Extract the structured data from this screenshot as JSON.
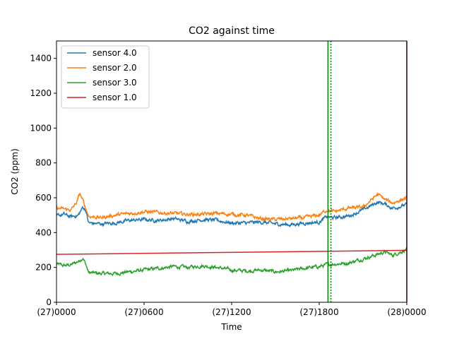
{
  "chart_data": {
    "type": "line",
    "title": "CO2 against  time",
    "xlabel": "Time",
    "ylabel": "CO2 (ppm)",
    "xlim": [
      0,
      24
    ],
    "ylim": [
      0,
      1500
    ],
    "x_ticks": [
      {
        "value": 0,
        "label": "(27)0000"
      },
      {
        "value": 6,
        "label": "(27)0600"
      },
      {
        "value": 12,
        "label": "(27)1200"
      },
      {
        "value": 18,
        "label": "(27)1800"
      },
      {
        "value": 24,
        "label": "(28)0000"
      }
    ],
    "y_ticks": [
      0,
      200,
      400,
      600,
      800,
      1000,
      1200,
      1400
    ],
    "legend_position": "top-left",
    "grid": false,
    "x_unit": "hours since (27)0000",
    "series": [
      {
        "name": "sensor 4.0",
        "color": "#1f77b4",
        "x": [
          0,
          0.5,
          1,
          1.5,
          1.8,
          2.0,
          2.2,
          3,
          4,
          5,
          6,
          7,
          8,
          9,
          10,
          11,
          12,
          13,
          14,
          15,
          16,
          17,
          18,
          18.5,
          19,
          20,
          21,
          22,
          22.5,
          23,
          24
        ],
        "y": [
          495,
          505,
          490,
          500,
          545,
          530,
          455,
          450,
          455,
          470,
          475,
          470,
          480,
          465,
          475,
          470,
          455,
          455,
          460,
          450,
          445,
          455,
          460,
          490,
          485,
          495,
          530,
          575,
          565,
          540,
          560
        ]
      },
      {
        "name": "sensor 2.0",
        "color": "#ff7f0e",
        "x": [
          0,
          0.5,
          1,
          1.4,
          1.6,
          1.8,
          2.0,
          2.2,
          3,
          4,
          5,
          6,
          7,
          8,
          9,
          10,
          11,
          12,
          13,
          14,
          15,
          16,
          17,
          18,
          18.5,
          19,
          20,
          21,
          22,
          22.5,
          23,
          24
        ],
        "y": [
          540,
          535,
          530,
          575,
          625,
          585,
          540,
          495,
          485,
          500,
          510,
          520,
          515,
          510,
          505,
          505,
          510,
          505,
          500,
          480,
          475,
          480,
          485,
          500,
          530,
          520,
          540,
          545,
          620,
          590,
          570,
          600
        ]
      },
      {
        "name": "sensor 3.0",
        "color": "#2ca02c",
        "x": [
          0,
          0.5,
          1,
          1.5,
          1.8,
          2.0,
          2.2,
          3,
          4,
          5,
          6,
          7,
          8,
          9,
          10,
          11,
          12,
          13,
          14,
          15,
          16,
          17,
          18,
          18.5,
          19,
          20,
          21,
          22,
          22.5,
          23,
          23.6,
          24
        ],
        "y": [
          220,
          210,
          215,
          235,
          255,
          220,
          170,
          165,
          165,
          175,
          185,
          195,
          205,
          200,
          210,
          200,
          185,
          180,
          185,
          175,
          180,
          195,
          205,
          215,
          220,
          225,
          250,
          275,
          290,
          270,
          290,
          305
        ]
      },
      {
        "name": "sensor 1.0",
        "color": "#d62728",
        "x": [
          0,
          24
        ],
        "y": [
          275,
          298
        ]
      }
    ],
    "vlines": [
      {
        "x": 18.6,
        "color": "#008000",
        "style": "solid"
      },
      {
        "x": 18.8,
        "color": "#008000",
        "style": "dotted"
      },
      {
        "x": 24,
        "color": "#8b0000",
        "style": "solid"
      }
    ]
  }
}
